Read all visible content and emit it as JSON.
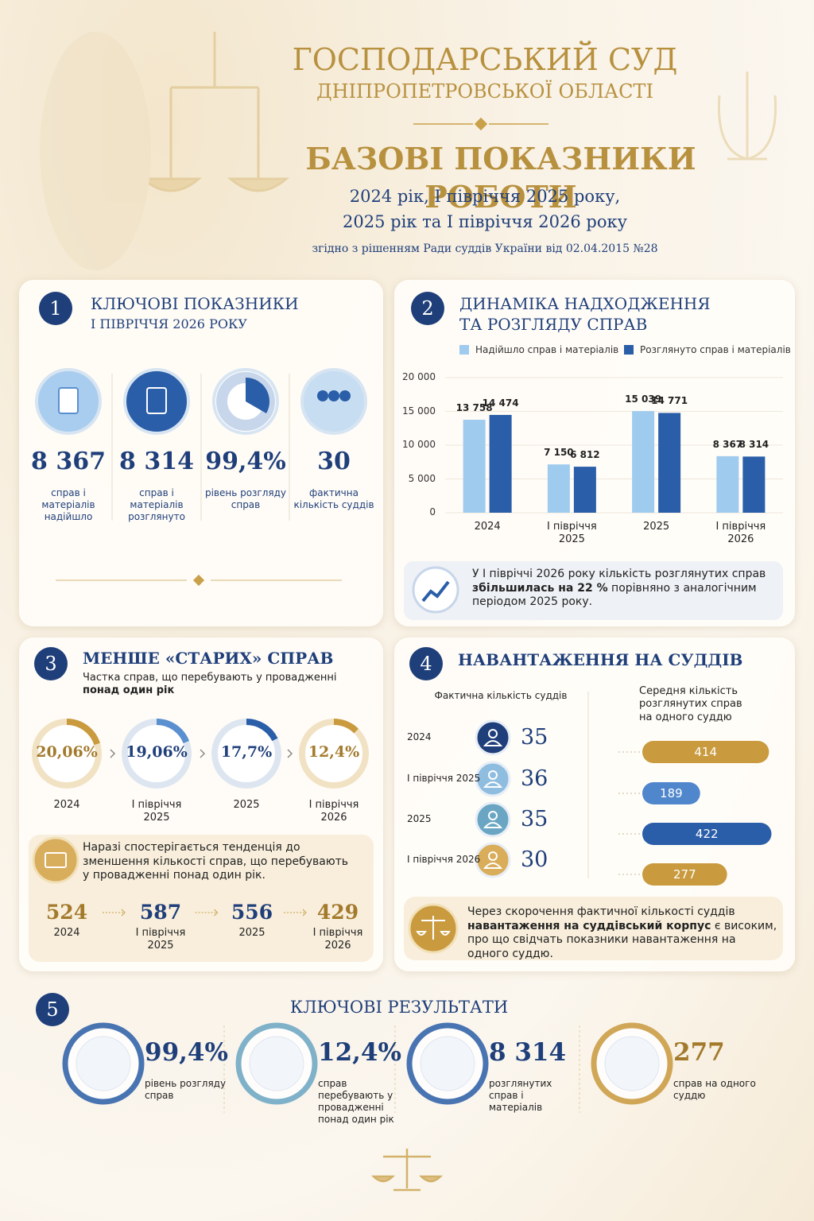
{
  "header": {
    "court_line1": "ГОСПОДАРСЬКИЙ СУД",
    "court_line2": "ДНІПРОПЕТРОВСЬКОЇ ОБЛАСТІ",
    "title": "БАЗОВІ ПОКАЗНИКИ РОБОТИ",
    "periods_line1": "2024 рік, І півріччя 2025 року,",
    "periods_line2": "2025 рік та І півріччя 2026 року",
    "basis": "згідно з рішенням Ради суддів України від 02.04.2015 №28"
  },
  "section1": {
    "number": "1",
    "title_line1": "КЛЮЧОВІ ПОКАЗНИКИ",
    "title_line2": "І ПІВРІЧЧЯ 2026 РОКУ",
    "items": [
      {
        "value": "8 367",
        "caption": "справ і матеріалів надійшло"
      },
      {
        "value": "8 314",
        "caption": "справ і матеріалів розглянуто"
      },
      {
        "value": "99,4%",
        "caption": "рівень розгляду справ"
      },
      {
        "value": "30",
        "caption": "фактична кількість суддів"
      }
    ]
  },
  "section2": {
    "number": "2",
    "title_line1": "ДИНАМІКА НАДХОДЖЕННЯ",
    "title_line2": "ТА РОЗГЛЯДУ СПРАВ",
    "note_before": "У І півріччі 2026 року кількість розглянутих справ ",
    "note_bold": "збільшилась на 22 %",
    "note_after": " порівняно з аналогічним періодом 2025 року."
  },
  "chart_data": {
    "type": "bar",
    "categories": [
      "2024",
      "І півріччя 2025",
      "2025",
      "І півріччя 2026"
    ],
    "series": [
      {
        "name": "Надійшло справ і матеріалів",
        "color": "#9fcbee",
        "values": [
          13758,
          7150,
          15039,
          8367
        ],
        "value_labels": [
          "13 758",
          "7 150",
          "15 039",
          "8 367"
        ]
      },
      {
        "name": "Розглянуто справ і матеріалів",
        "color": "#2a5ea8",
        "values": [
          14474,
          6812,
          14771,
          8314
        ],
        "value_labels": [
          "14 474",
          "6 812",
          "14 771",
          "8 314"
        ]
      }
    ],
    "ylim": [
      0,
      20000
    ],
    "yticks": [
      0,
      {
        "value": 5000,
        "label": "5 000"
      },
      {
        "value": 10000,
        "label": "10 000"
      },
      {
        "value": 15000,
        "label": "15 000"
      },
      {
        "value": 20000,
        "label": "20 000"
      }
    ]
  },
  "section3": {
    "number": "3",
    "title": "МЕНШЕ «СТАРИХ» СПРАВ",
    "subtitle": "Частка справ, що перебувають у провадженні",
    "subtitle_bold": "понад один рік",
    "rings": [
      {
        "value": 20.06,
        "label": "20,06%",
        "period": "2024",
        "color": "#c99a3e"
      },
      {
        "value": 19.06,
        "label": "19,06%",
        "period": "І півріччя 2025",
        "color": "#5a8fd0"
      },
      {
        "value": 17.7,
        "label": "17,7%",
        "period": "2025",
        "color": "#2a5ea8"
      },
      {
        "value": 12.4,
        "label": "12,4%",
        "period": "І півріччя 2026",
        "color": "#c99a3e"
      }
    ],
    "note": "Наразі спостерігається тенденція до зменшення кількості справ, що перебувають у провадженні понад один рік.",
    "counts": [
      {
        "value": "524",
        "period": "2024"
      },
      {
        "value": "587",
        "period": "І півріччя 2025"
      },
      {
        "value": "556",
        "period": "2025"
      },
      {
        "value": "429",
        "period": "І півріччя 2026"
      }
    ]
  },
  "section4": {
    "number": "4",
    "title": "НАВАНТАЖЕННЯ НА СУДДІВ",
    "left_header": "Фактична кількість суддів",
    "right_header": "Середня кількість розглянутих справ на одного суддю",
    "rows": [
      {
        "period": "2024",
        "judges": 35,
        "load": 414,
        "color": "#c99a3e",
        "icon_color": "#1f3f7a"
      },
      {
        "period": "І півріччя 2025",
        "judges": 36,
        "load": 189,
        "color": "#4f86cc",
        "icon_color": "#8fbde0"
      },
      {
        "period": "2025",
        "judges": 35,
        "load": 422,
        "color": "#2a5ea8",
        "icon_color": "#6aa6c4"
      },
      {
        "period": "І півріччя 2026",
        "judges": 30,
        "load": 277,
        "color": "#c99a3e",
        "icon_color": "#d9ad5a"
      }
    ],
    "note_before": "Через скорочення фактичної кількості суддів ",
    "note_bold": "навантаження на суддівський корпус",
    "note_after": " є високим, про що свідчать показники навантаження на одного суддю."
  },
  "section5": {
    "number": "5",
    "title": "КЛЮЧОВІ РЕЗУЛЬТАТИ",
    "items": [
      {
        "value": "99,4%",
        "caption": "рівень розгляду справ"
      },
      {
        "value": "12,4%",
        "caption": "справ перебувають у провадженні понад один рік"
      },
      {
        "value": "8 314",
        "caption": "розглянутих справ і матеріалів"
      },
      {
        "value": "277",
        "caption": "справ на одного суддю"
      }
    ]
  }
}
